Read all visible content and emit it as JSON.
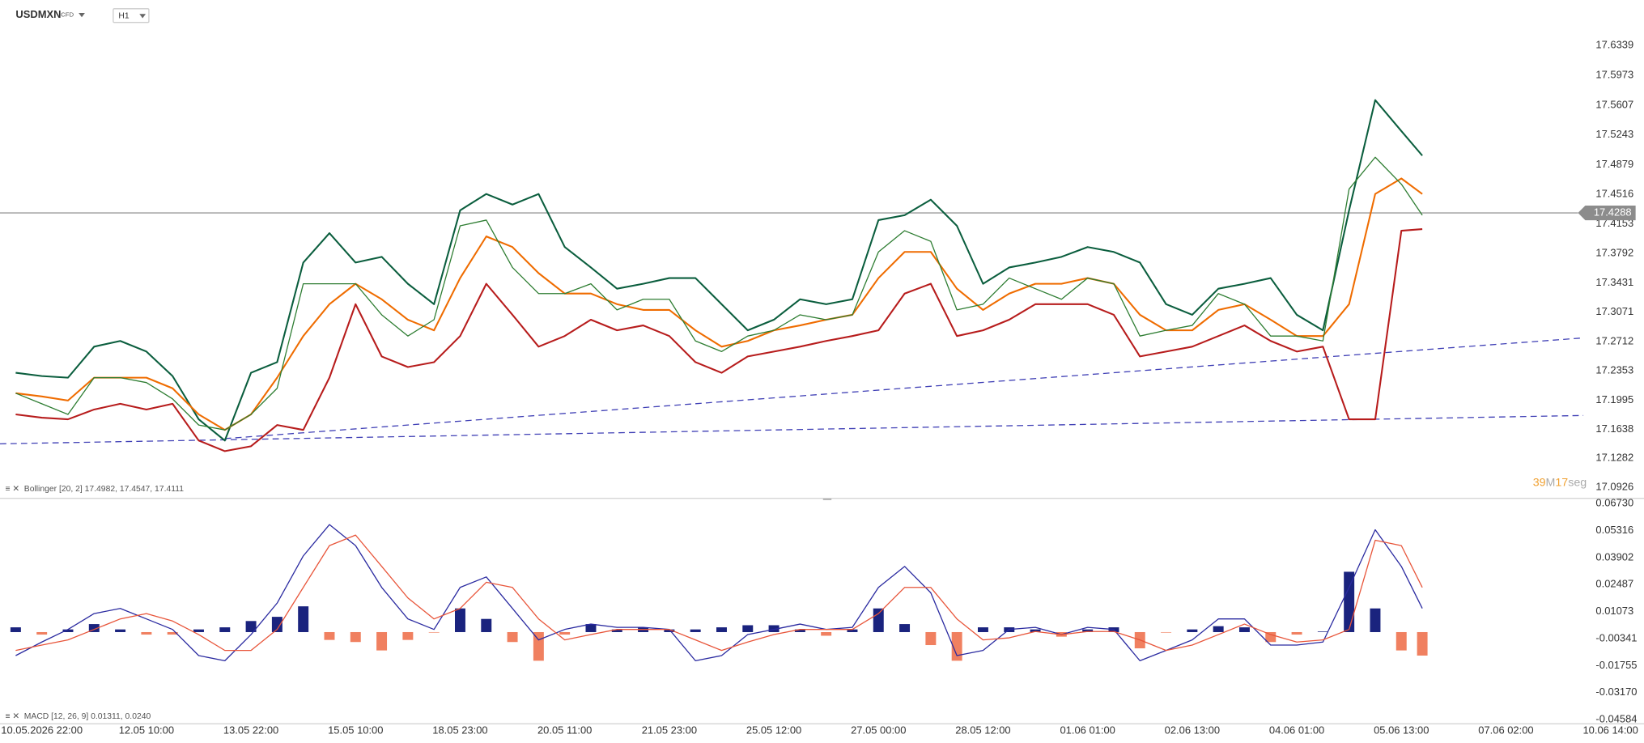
{
  "header": {
    "symbol": "USDMXN",
    "kind": "CFD",
    "timeframe": "H1"
  },
  "timer": [
    "39",
    "M",
    "17",
    "seg"
  ],
  "chart_data": [
    {
      "type": "line",
      "label": "Bollinger [20, 2] 17.4982, 17.4547, 17.4111",
      "x": [
        -0.25,
        0,
        0.25,
        0.5,
        0.75,
        1,
        1.25,
        1.5,
        1.75,
        2,
        2.25,
        2.5,
        2.75,
        3,
        3.25,
        3.5,
        3.75,
        4,
        4.25,
        4.5,
        4.75,
        5,
        5.25,
        5.5,
        5.75,
        6,
        6.25,
        6.5,
        6.75,
        7,
        7.25,
        7.5,
        7.75,
        8,
        8.25,
        8.5,
        8.75,
        9,
        9.25,
        9.5,
        9.75,
        10,
        10.25,
        10.5,
        10.75,
        11,
        11.25,
        11.5,
        11.75,
        12,
        12.25,
        12.5,
        12.75,
        13,
        13.2
      ],
      "xlim": [
        -0.4,
        15.32
      ],
      "xticks": [
        {
          "value": 0,
          "label": "10.05.2026 22:00"
        },
        {
          "value": 1,
          "label": "12.05 10:00"
        },
        {
          "value": 2,
          "label": "13.05 22:00"
        },
        {
          "value": 3,
          "label": "15.05 10:00"
        },
        {
          "value": 4,
          "label": "18.05 23:00"
        },
        {
          "value": 5,
          "label": "20.05 11:00"
        },
        {
          "value": 6,
          "label": "21.05 23:00"
        },
        {
          "value": 7,
          "label": "25.05 12:00"
        },
        {
          "value": 8,
          "label": "27.05 00:00"
        },
        {
          "value": 9,
          "label": "28.05 12:00"
        },
        {
          "value": 10,
          "label": "01.06 01:00"
        },
        {
          "value": 11,
          "label": "02.06 13:00"
        },
        {
          "value": 12,
          "label": "04.06 01:00"
        },
        {
          "value": 13,
          "label": "05.06 13:00"
        },
        {
          "value": 14,
          "label": "07.06 02:00"
        },
        {
          "value": 15,
          "label": "10.06 14:00"
        }
      ],
      "ylim": [
        17.0792,
        17.6891
      ],
      "yticks": [
        17.6339,
        17.5973,
        17.5607,
        17.5243,
        17.4879,
        17.4516,
        17.4153,
        17.3792,
        17.3431,
        17.3071,
        17.2712,
        17.2353,
        17.1995,
        17.1638,
        17.1282,
        17.0926
      ],
      "grid": false,
      "last_price": 17.4288,
      "series": [
        {
          "color": "#0b5e3e",
          "values": [
            17.233,
            17.229,
            17.227,
            17.265,
            17.272,
            17.259,
            17.229,
            17.176,
            17.15,
            17.233,
            17.246,
            17.368,
            17.404,
            17.368,
            17.375,
            17.342,
            17.317,
            17.432,
            17.452,
            17.439,
            17.452,
            17.387,
            17.362,
            17.336,
            17.342,
            17.349,
            17.349,
            17.317,
            17.285,
            17.298,
            17.323,
            17.317,
            17.323,
            17.42,
            17.426,
            17.445,
            17.413,
            17.342,
            17.362,
            17.368,
            17.375,
            17.387,
            17.381,
            17.368,
            17.317,
            17.304,
            17.336,
            17.342,
            17.349,
            17.304,
            17.285,
            17.432,
            17.567,
            17.529,
            17.499
          ]
        },
        {
          "color": "#ef6c00",
          "values": [
            17.208,
            17.204,
            17.199,
            17.227,
            17.227,
            17.227,
            17.214,
            17.182,
            17.163,
            17.182,
            17.227,
            17.278,
            17.317,
            17.342,
            17.323,
            17.298,
            17.285,
            17.349,
            17.4,
            17.387,
            17.355,
            17.33,
            17.33,
            17.317,
            17.31,
            17.31,
            17.285,
            17.265,
            17.272,
            17.285,
            17.291,
            17.298,
            17.304,
            17.349,
            17.381,
            17.381,
            17.336,
            17.31,
            17.33,
            17.342,
            17.342,
            17.349,
            17.342,
            17.304,
            17.285,
            17.285,
            17.31,
            17.317,
            17.298,
            17.278,
            17.278,
            17.317,
            17.452,
            17.471,
            17.452
          ]
        },
        {
          "color": "#b71c1c",
          "values": [
            17.182,
            17.178,
            17.176,
            17.188,
            17.195,
            17.188,
            17.195,
            17.15,
            17.137,
            17.143,
            17.169,
            17.163,
            17.227,
            17.317,
            17.253,
            17.24,
            17.246,
            17.278,
            17.342,
            17.304,
            17.265,
            17.278,
            17.298,
            17.285,
            17.291,
            17.278,
            17.246,
            17.233,
            17.253,
            17.259,
            17.265,
            17.272,
            17.278,
            17.285,
            17.33,
            17.342,
            17.278,
            17.285,
            17.298,
            17.317,
            17.317,
            17.317,
            17.304,
            17.253,
            17.259,
            17.265,
            17.278,
            17.291,
            17.272,
            17.259,
            17.265,
            17.176,
            17.176,
            17.407,
            17.409
          ]
        },
        {
          "color": "#2e7d32",
          "values": [
            17.208,
            17.195,
            17.182,
            17.227,
            17.227,
            17.221,
            17.201,
            17.169,
            17.163,
            17.182,
            17.214,
            17.342,
            17.342,
            17.342,
            17.304,
            17.278,
            17.298,
            17.413,
            17.42,
            17.362,
            17.33,
            17.33,
            17.342,
            17.31,
            17.323,
            17.323,
            17.272,
            17.259,
            17.278,
            17.285,
            17.304,
            17.298,
            17.304,
            17.381,
            17.407,
            17.394,
            17.31,
            17.317,
            17.349,
            17.336,
            17.323,
            17.349,
            17.342,
            17.278,
            17.285,
            17.291,
            17.33,
            17.317,
            17.278,
            17.278,
            17.272,
            17.458,
            17.497,
            17.464,
            17.426
          ]
        }
      ],
      "trendlines": [
        {
          "color": "#3f3fb5",
          "x": [
            1.75,
            14.74
          ],
          "y": [
            17.1524,
            17.2757
          ]
        },
        {
          "color": "#3f3fb5",
          "x": [
            -0.4,
            14.74
          ],
          "y": [
            17.146,
            17.1807
          ]
        }
      ]
    },
    {
      "type": "macd",
      "label": "MACD [12, 26, 9] 0.01311, 0.0240",
      "ylim": [
        -0.048,
        0.0695
      ],
      "yticks": [
        {
          "value": 0.0673,
          "label": "0.06730"
        },
        0.05316,
        0.03902,
        0.02487,
        0.01073,
        -0.00341,
        -0.01755,
        {
          "value": -0.0317,
          "label": "-0.03170"
        },
        -0.04584
      ],
      "histogram": {
        "colors": [
          "#1a237e",
          "#f08060"
        ],
        "values": [
          0.0025,
          -0.0013,
          0.0014,
          0.0042,
          0.0014,
          -0.0013,
          -0.0013,
          0.0014,
          0.0025,
          0.0058,
          0.008,
          0.0135,
          -0.0041,
          -0.0052,
          -0.0096,
          -0.0041,
          -0.0002,
          0.0124,
          0.0069,
          -0.0052,
          -0.015,
          -0.0013,
          0.0042,
          0.0014,
          0.0025,
          0.0014,
          0.0014,
          0.0025,
          0.0036,
          0.0036,
          0.0014,
          -0.0019,
          0.0014,
          0.0124,
          0.0042,
          -0.0068,
          -0.015,
          0.0025,
          0.0025,
          0.0014,
          -0.0024,
          0.0014,
          0.0025,
          -0.0085,
          -0.0002,
          0.0014,
          0.0031,
          0.0025,
          -0.0052,
          -0.0013,
          0.0003,
          0.0316,
          0.0124,
          -0.0096,
          -0.0123
        ]
      },
      "series": [
        {
          "color": "#2a2aa0",
          "values": [
            -0.0123,
            -0.0052,
            0.0014,
            0.0097,
            0.0124,
            0.0069,
            0.0014,
            -0.0123,
            -0.015,
            -0.0013,
            0.0152,
            0.0399,
            0.0563,
            0.0453,
            0.0234,
            0.0069,
            0.0014,
            0.0234,
            0.0289,
            0.0124,
            -0.0041,
            0.0014,
            0.0042,
            0.0025,
            0.0025,
            0.0014,
            -0.015,
            -0.0123,
            -0.0013,
            0.0014,
            0.0042,
            0.0014,
            0.0025,
            0.0234,
            0.0344,
            0.0206,
            -0.0123,
            -0.0096,
            0.0014,
            0.0025,
            -0.0013,
            0.0025,
            0.0014,
            -0.015,
            -0.0096,
            -0.0041,
            0.0069,
            0.0069,
            -0.0068,
            -0.0068,
            -0.0052,
            0.0234,
            0.0536,
            0.0344,
            0.0124
          ]
        },
        {
          "color": "#e8553a",
          "values": [
            -0.0096,
            -0.0068,
            -0.0041,
            0.0014,
            0.0069,
            0.0097,
            0.0058,
            -0.0013,
            -0.0096,
            -0.0096,
            0.0014,
            0.0234,
            0.0453,
            0.0508,
            0.0344,
            0.0179,
            0.0069,
            0.0124,
            0.0261,
            0.0234,
            0.0069,
            -0.0041,
            -0.0013,
            0.0014,
            0.0014,
            0.0014,
            -0.0041,
            -0.0096,
            -0.0052,
            -0.0013,
            0.0014,
            0.0014,
            0.0014,
            0.0097,
            0.0234,
            0.0234,
            0.0069,
            -0.0041,
            -0.003,
            0.0003,
            -0.0013,
            0.0003,
            0.0003,
            -0.0041,
            -0.0096,
            -0.0068,
            -0.0013,
            0.0042,
            -0.0013,
            -0.0052,
            -0.0041,
            0.0014,
            0.0481,
            0.0453,
            0.0234
          ]
        }
      ]
    }
  ]
}
